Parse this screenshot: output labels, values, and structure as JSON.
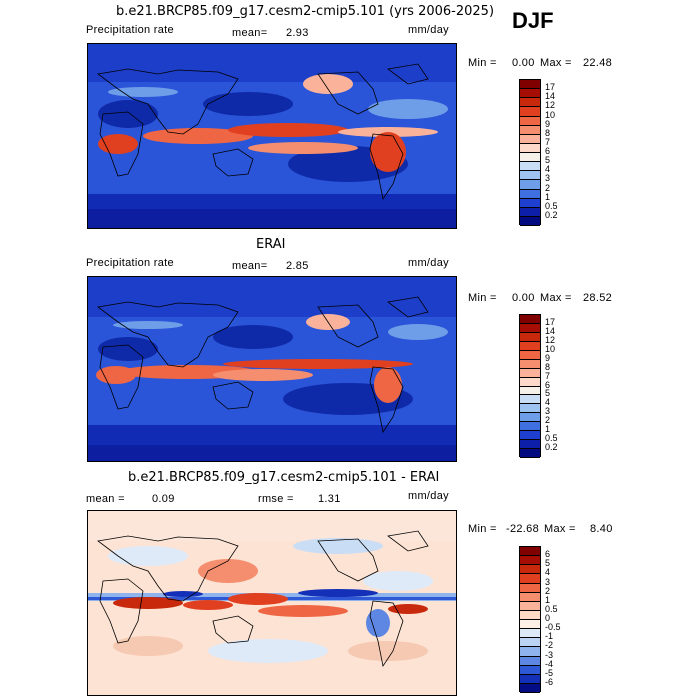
{
  "season": "DJF",
  "panel1": {
    "title": "b.e21.BRCP85.f09_g17.cesm2-cmip5.101 (yrs 2006-2025)",
    "var_label": "Precipitation rate",
    "mean_label": "mean=",
    "mean_value": "2.93",
    "units": "mm/day",
    "min_label": "Min =",
    "min_value": "0.00",
    "max_label": "Max =",
    "max_value": "22.48"
  },
  "panel2": {
    "title": "ERAI",
    "var_label": "Precipitation rate",
    "mean_label": "mean=",
    "mean_value": "2.85",
    "units": "mm/day",
    "min_label": "Min =",
    "min_value": "0.00",
    "max_label": "Max =",
    "max_value": "28.52"
  },
  "panel3": {
    "title": "b.e21.BRCP85.f09_g17.cesm2-cmip5.101 - ERAI",
    "mean_label": "mean =",
    "mean_value": "0.09",
    "rmse_label": "rmse =",
    "rmse_value": "1.31",
    "units": "mm/day",
    "min_label": "Min =",
    "min_value": "-22.68",
    "max_label": "Max =",
    "max_value": "8.40"
  },
  "precip_colorbar": {
    "labels": [
      "17",
      "14",
      "12",
      "10",
      "9",
      "8",
      "7",
      "6",
      "5",
      "4",
      "3",
      "2",
      "1",
      "0.5",
      "0.2"
    ],
    "colors": [
      "#800000",
      "#a50d05",
      "#c8280c",
      "#e04020",
      "#ef6645",
      "#f58e6e",
      "#fab39a",
      "#fcd9c8",
      "#f6f1e8",
      "#c9ddf5",
      "#9fc3f0",
      "#6f9ee8",
      "#3f6fe0",
      "#1f3fd0",
      "#0d1fa8",
      "#020a80"
    ]
  },
  "diff_colorbar": {
    "labels": [
      "6",
      "5",
      "4",
      "3",
      "2",
      "1",
      "0.5",
      "0",
      "-0.5",
      "-1",
      "-2",
      "-3",
      "-4",
      "-5",
      "-6"
    ],
    "colors": [
      "#800000",
      "#a50d05",
      "#c8280c",
      "#e04020",
      "#ef6645",
      "#f58e6e",
      "#fab39a",
      "#fdd9c6",
      "#fff0e6",
      "#dfeaf8",
      "#bcd4f3",
      "#8fb3ec",
      "#5e86e3",
      "#2f58d6",
      "#1430b8",
      "#030c85"
    ]
  }
}
